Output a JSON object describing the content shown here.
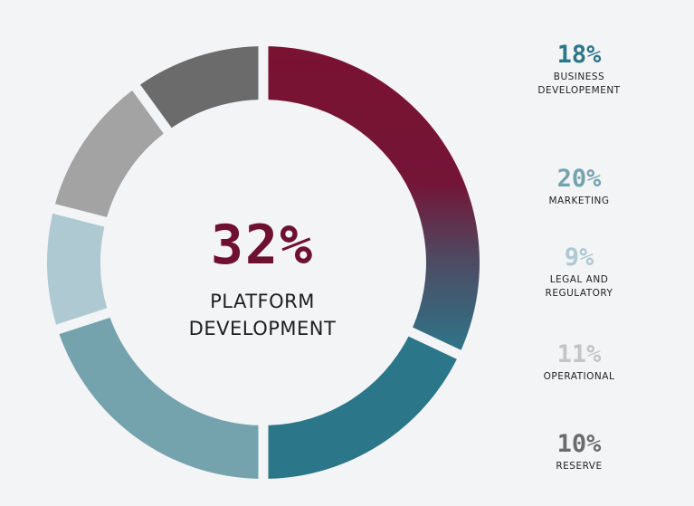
{
  "chart_data": {
    "type": "pie",
    "style": "donut",
    "center": {
      "value": "32%",
      "label_line1": "PLATFORM",
      "label_line2": "DEVELOPMENT"
    },
    "slices": [
      {
        "label": "PLATFORM DEVELOPMENT",
        "value": 32,
        "color_start": "#7a1232",
        "color_end": "#3a6f82"
      },
      {
        "label": "BUSINESS DEVELOPEMENT",
        "value": 18,
        "color": "#2c7689"
      },
      {
        "label": "MARKETING",
        "value": 20,
        "color": "#74a3ae"
      },
      {
        "label": "LEGAL AND REGULATORY",
        "value": 9,
        "color": "#aec9d1"
      },
      {
        "label": "OPERATIONAL",
        "value": 11,
        "color": "#a3a3a3"
      },
      {
        "label": "RESERVE",
        "value": 10,
        "color": "#6b6b6b"
      }
    ],
    "legend": [
      {
        "pct": "18%",
        "label_lines": [
          "BUSINESS",
          "DEVELOPEMENT"
        ],
        "color": "#2c7689"
      },
      {
        "pct": "20%",
        "label_lines": [
          "MARKETING"
        ],
        "color": "#74a3ae"
      },
      {
        "pct": "9%",
        "label_lines": [
          "LEGAL AND",
          "REGULATORY"
        ],
        "color": "#aec9d1"
      },
      {
        "pct": "11%",
        "label_lines": [
          "OPERATIONAL"
        ],
        "color": "#c4c4c4"
      },
      {
        "pct": "10%",
        "label_lines": [
          "RESERVE"
        ],
        "color": "#6b6b6b"
      }
    ],
    "legend_placement": "right"
  }
}
